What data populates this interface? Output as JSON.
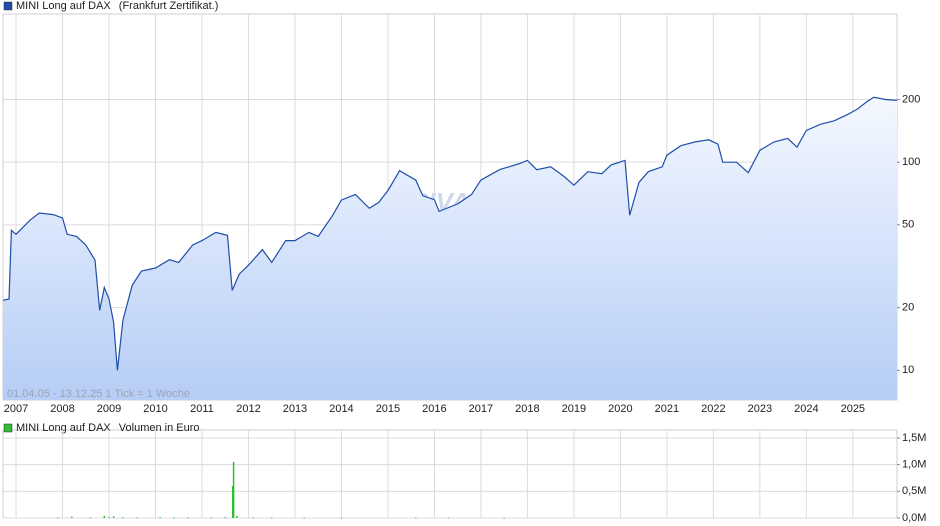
{
  "chart_data": [
    {
      "type": "line",
      "log_scale": true,
      "grid": true,
      "subtitle": "(Frankfurt Zertifikat.)",
      "annotation": "01.04.05 - 13.12.25    1 Tick = 1 Woche",
      "watermark": "ARIVA.DE",
      "xlim": [
        2006.72,
        2025.95
      ],
      "xticks": [
        2007,
        2008,
        2009,
        2010,
        2011,
        2012,
        2013,
        2014,
        2015,
        2016,
        2017,
        2018,
        2019,
        2020,
        2021,
        2022,
        2023,
        2024,
        2025
      ],
      "ylim": [
        7.2,
        515
      ],
      "yticks": [
        10,
        20,
        50,
        100,
        200
      ],
      "series": [
        {
          "name": "MINI Long auf DAX",
          "color": "#1f4ea8",
          "x": [
            2006.72,
            2006.85,
            2006.9,
            2007.0,
            2007.3,
            2007.5,
            2007.8,
            2008.0,
            2008.1,
            2008.3,
            2008.5,
            2008.7,
            2008.8,
            2008.9,
            2009.0,
            2009.1,
            2009.18,
            2009.3,
            2009.5,
            2009.7,
            2010.0,
            2010.3,
            2010.5,
            2010.8,
            2011.0,
            2011.3,
            2011.55,
            2011.65,
            2011.8,
            2012.0,
            2012.3,
            2012.5,
            2012.8,
            2013.0,
            2013.3,
            2013.5,
            2013.8,
            2014.0,
            2014.3,
            2014.6,
            2014.8,
            2015.0,
            2015.25,
            2015.6,
            2015.75,
            2016.0,
            2016.1,
            2016.5,
            2016.8,
            2017.0,
            2017.4,
            2017.8,
            2018.0,
            2018.2,
            2018.5,
            2018.8,
            2019.0,
            2019.3,
            2019.6,
            2019.8,
            2020.1,
            2020.2,
            2020.4,
            2020.6,
            2020.9,
            2021.0,
            2021.3,
            2021.6,
            2021.9,
            2022.1,
            2022.2,
            2022.5,
            2022.75,
            2023.0,
            2023.3,
            2023.6,
            2023.8,
            2024.0,
            2024.3,
            2024.6,
            2024.9,
            2025.1,
            2025.3,
            2025.45,
            2025.7,
            2025.95
          ],
          "values": [
            21.7,
            22,
            47,
            45,
            52.6,
            57,
            56,
            54,
            45,
            44,
            40,
            33.8,
            19.4,
            25,
            22,
            17,
            10,
            17.4,
            25.6,
            30,
            31,
            34,
            33,
            40,
            42,
            46,
            44.5,
            24.2,
            29,
            32,
            38,
            33,
            42,
            42,
            46,
            44,
            55,
            65.7,
            70,
            60,
            64,
            73,
            91,
            82,
            69,
            66,
            58,
            63,
            70,
            82,
            92,
            98,
            102,
            92,
            95,
            85,
            77.5,
            90,
            88,
            97,
            102,
            55.6,
            80,
            90,
            95,
            108,
            120,
            125,
            128,
            122,
            100,
            100,
            89,
            114,
            125,
            130,
            118,
            142,
            152,
            158,
            170,
            180,
            195,
            205,
            200,
            198
          ]
        }
      ]
    },
    {
      "type": "bar",
      "grid": true,
      "subtitle": "Volumen in Euro",
      "xlim": [
        2006.72,
        2025.95
      ],
      "xticks": [
        2007,
        2008,
        2009,
        2010,
        2011,
        2012,
        2013,
        2014,
        2015,
        2016,
        2017,
        2018,
        2019,
        2020,
        2021,
        2022,
        2023,
        2024,
        2025
      ],
      "ylim": [
        0,
        1650000
      ],
      "yticks": [
        {
          "value": 0,
          "label": "0,0M"
        },
        {
          "value": 500000,
          "label": "0,5M"
        },
        {
          "value": 1000000,
          "label": "1,0M"
        },
        {
          "value": 1500000,
          "label": "1,5M"
        }
      ],
      "series": [
        {
          "name": "MINI Long auf DAX",
          "color": "#33bb33",
          "x": [
            2007.9,
            2008.2,
            2008.6,
            2008.9,
            2009.0,
            2009.1,
            2009.3,
            2009.6,
            2010.1,
            2010.4,
            2010.7,
            2011.2,
            2011.5,
            2011.66,
            2011.68,
            2011.75,
            2012.1,
            2012.5,
            2013.2,
            2014.0,
            2015.6,
            2016.3,
            2017.5
          ],
          "values": [
            8000,
            25000,
            10000,
            40000,
            15000,
            30000,
            12000,
            9000,
            15000,
            8000,
            12000,
            10000,
            15000,
            600000,
            1050000,
            40000,
            10000,
            8000,
            6000,
            5000,
            8000,
            5000,
            4000
          ]
        }
      ]
    }
  ]
}
